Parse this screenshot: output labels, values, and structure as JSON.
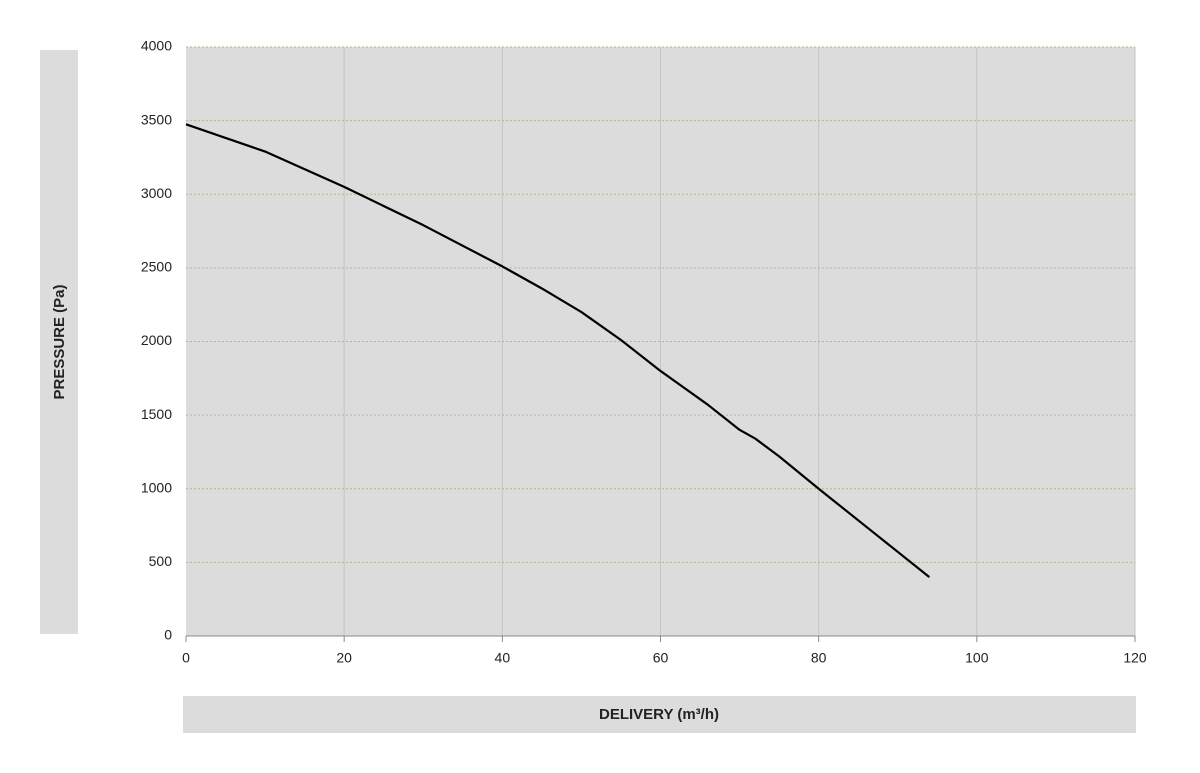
{
  "chart_data": {
    "type": "line",
    "x_label": "DELIVERY (m³/h)",
    "y_label": "PRESSURE (Pa)",
    "x": [
      0,
      10,
      20,
      30,
      40,
      45,
      50,
      55,
      60,
      66,
      70,
      72,
      75,
      80,
      87,
      94
    ],
    "series": [
      {
        "color": "#000000",
        "values": [
          3475,
          3290,
          3050,
          2790,
          2510,
          2360,
          2200,
          2010,
          1800,
          1570,
          1400,
          1340,
          1220,
          1000,
          700,
          400
        ]
      }
    ],
    "xlim": [
      0,
      120
    ],
    "xticks": [
      0,
      20,
      40,
      60,
      80,
      100,
      120
    ],
    "ylim": [
      0,
      4000
    ],
    "yticks": [
      0,
      500,
      1000,
      1500,
      2000,
      2500,
      3000,
      3500,
      4000
    ],
    "grid": true
  }
}
